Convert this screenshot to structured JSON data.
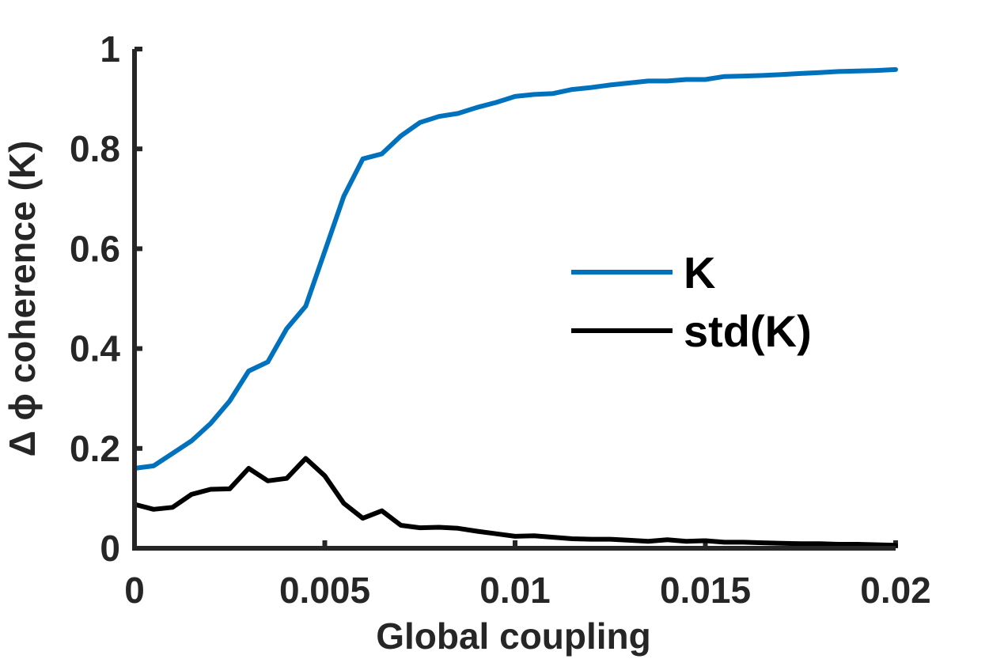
{
  "chart_data": {
    "type": "line",
    "xlabel": "Global coupling",
    "ylabel": "Δ ϕ coherence (K)",
    "xlim": [
      0,
      0.02
    ],
    "ylim": [
      0,
      1
    ],
    "xticks": [
      "0",
      "0.005",
      "0.01",
      "0.015",
      "0.02"
    ],
    "xtick_values": [
      0,
      0.005,
      0.01,
      0.015,
      0.02
    ],
    "yticks": [
      "0",
      "0.2",
      "0.4",
      "0.6",
      "0.8",
      "1"
    ],
    "ytick_values": [
      0,
      0.2,
      0.4,
      0.6,
      0.8,
      1
    ],
    "grid": false,
    "legend_position": "right",
    "x": [
      0,
      0.0005,
      0.001,
      0.0015,
      0.002,
      0.0025,
      0.003,
      0.0035,
      0.004,
      0.0045,
      0.005,
      0.0055,
      0.006,
      0.0065,
      0.007,
      0.0075,
      0.008,
      0.0085,
      0.009,
      0.0095,
      0.01,
      0.0105,
      0.011,
      0.0115,
      0.012,
      0.0125,
      0.013,
      0.0135,
      0.014,
      0.0145,
      0.015,
      0.0155,
      0.016,
      0.0165,
      0.017,
      0.0175,
      0.018,
      0.0185,
      0.019,
      0.0195,
      0.02
    ],
    "series": [
      {
        "name": "K",
        "color": "#0072BD",
        "values": [
          0.16,
          0.165,
          0.19,
          0.215,
          0.25,
          0.295,
          0.355,
          0.373,
          0.44,
          0.485,
          0.595,
          0.705,
          0.78,
          0.79,
          0.826,
          0.853,
          0.865,
          0.871,
          0.883,
          0.893,
          0.905,
          0.909,
          0.911,
          0.919,
          0.923,
          0.928,
          0.932,
          0.936,
          0.936,
          0.939,
          0.939,
          0.945,
          0.946,
          0.947,
          0.949,
          0.951,
          0.953,
          0.955,
          0.956,
          0.957,
          0.959
        ]
      },
      {
        "name": "std(K)",
        "color": "#000000",
        "values": [
          0.088,
          0.078,
          0.082,
          0.108,
          0.118,
          0.119,
          0.16,
          0.135,
          0.14,
          0.18,
          0.145,
          0.09,
          0.06,
          0.075,
          0.046,
          0.041,
          0.042,
          0.04,
          0.034,
          0.029,
          0.024,
          0.025,
          0.022,
          0.019,
          0.018,
          0.018,
          0.016,
          0.014,
          0.017,
          0.014,
          0.015,
          0.012,
          0.012,
          0.011,
          0.01,
          0.009,
          0.009,
          0.008,
          0.008,
          0.007,
          0.006
        ]
      }
    ]
  }
}
